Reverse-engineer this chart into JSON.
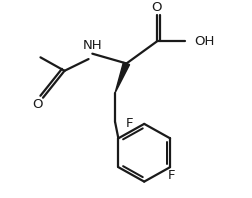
{
  "bg_color": "#ffffff",
  "line_color": "#1a1a1a",
  "line_width": 1.6,
  "font_size": 8.5,
  "xlim": [
    0,
    10
  ],
  "ylim": [
    0,
    8
  ]
}
